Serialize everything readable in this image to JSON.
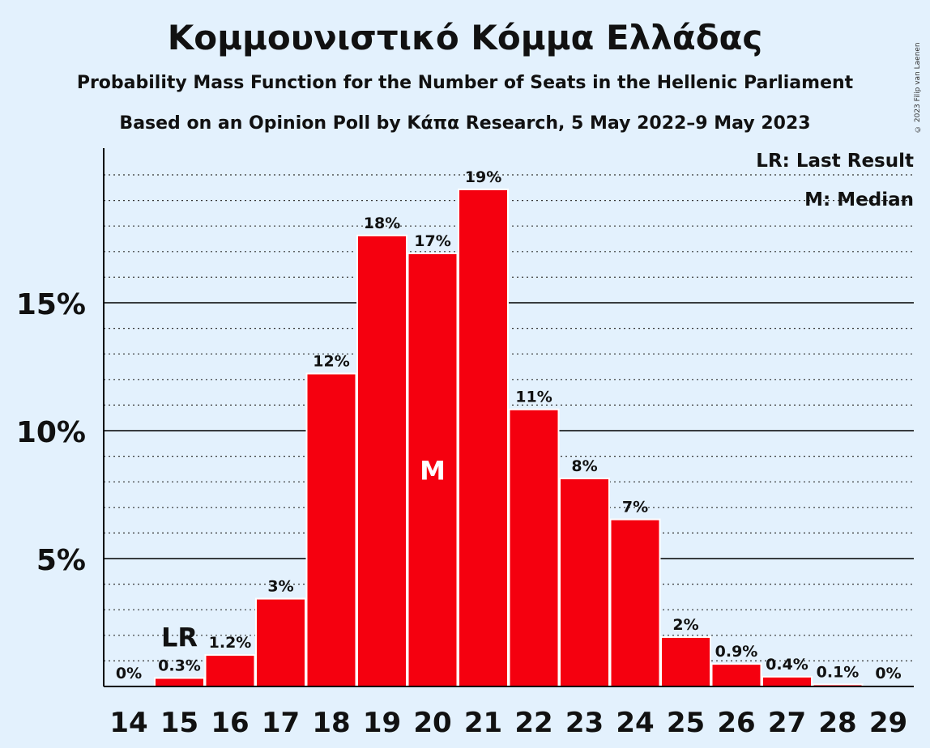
{
  "title": "Κομμουνιστικό Κόμμα Ελλάδας",
  "subtitle": "Probability Mass Function for the Number of Seats in the Hellenic Parliament",
  "subtitle2": "Based on an Opinion Poll by Κάπα Research, 5 May 2022–9 May 2023",
  "copyright": "© 2023 Filip van Laenen",
  "legend": {
    "last_result": "LR: Last Result",
    "median": "M: Median"
  },
  "chart_data": {
    "type": "bar",
    "categories": [
      "14",
      "15",
      "16",
      "17",
      "18",
      "19",
      "20",
      "21",
      "22",
      "23",
      "24",
      "25",
      "26",
      "27",
      "28",
      "29"
    ],
    "values": [
      0,
      0.3,
      1.2,
      3.4,
      12.2,
      17.6,
      16.9,
      19.4,
      10.8,
      8.1,
      6.5,
      1.9,
      0.85,
      0.35,
      0.05,
      0
    ],
    "data_labels": [
      "0%",
      "0.3%",
      "1.2%",
      "3%",
      "12%",
      "18%",
      "17%",
      "19%",
      "11%",
      "8%",
      "7%",
      "2%",
      "0.9%",
      "0.4%",
      "0.1%",
      "0%"
    ],
    "yticks": [
      5,
      10,
      15
    ],
    "ytick_labels": [
      "5%",
      "10%",
      "15%"
    ],
    "ylim": [
      0,
      21
    ],
    "last_result_seat": "15",
    "last_result_label": "LR",
    "median_seat": "20",
    "median_label": "M",
    "bar_color": "#f5000f",
    "grid": true
  }
}
